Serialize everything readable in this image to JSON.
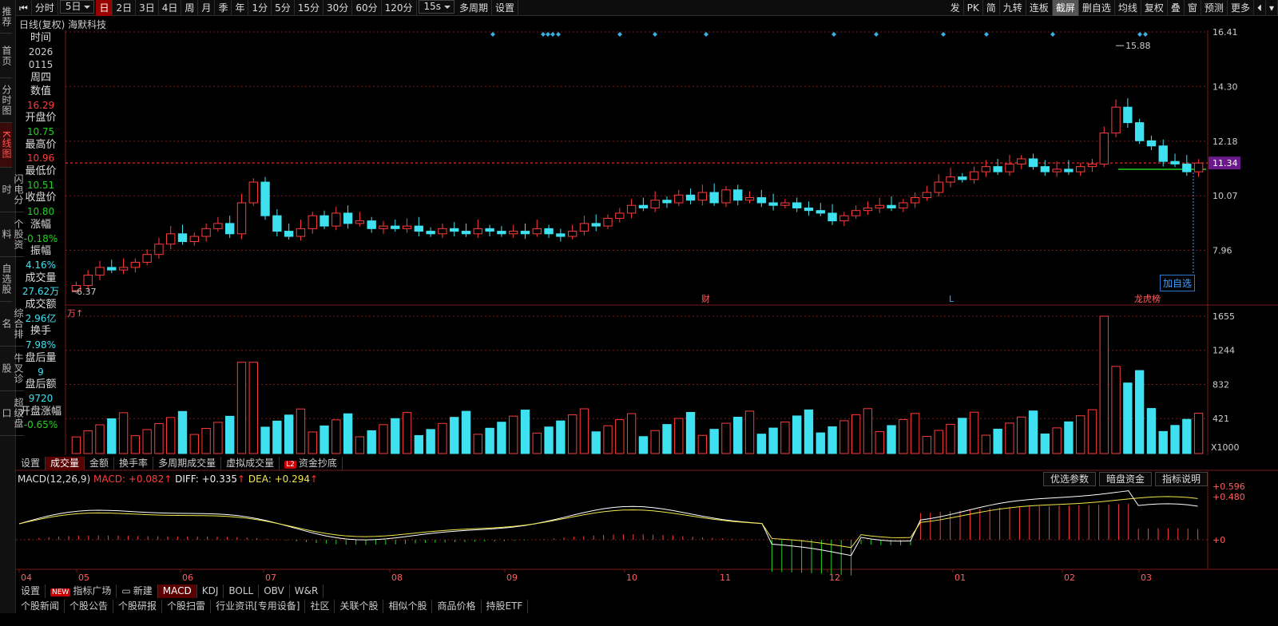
{
  "left_nav": [
    "推荐",
    "首页",
    "分时图",
    "K线图",
    "闪电分时",
    "个股资料",
    "自选股",
    "综合排名",
    "牛叉诊股",
    "超级盘口"
  ],
  "left_nav_active": 3,
  "toolbar": {
    "items": [
      "分时",
      "5日",
      "日",
      "2日",
      "3日",
      "4日",
      "周",
      "月",
      "季",
      "年",
      "1分",
      "5分",
      "15分",
      "30分",
      "60分",
      "120分",
      "15s",
      "多周期",
      "设置"
    ],
    "active": "日",
    "selects": [
      "5日",
      "15s"
    ],
    "right": [
      "发",
      "PK",
      "简",
      "九转",
      "连板",
      "截屏",
      "删自选",
      "均线",
      "复权",
      "叠",
      "窗",
      "预测",
      "更多"
    ]
  },
  "chart_title": "日线(复权)  海默科技",
  "info_panel": [
    {
      "label": "时间",
      "values": [
        "2026",
        "0115"
      ]
    },
    {
      "label": "周四",
      "values": []
    },
    {
      "label": "数值",
      "values": [
        "16.29"
      ],
      "color": "red"
    },
    {
      "label": "开盘价",
      "values": [
        "10.75"
      ],
      "color": "grn"
    },
    {
      "label": "最高价",
      "values": [
        "10.96"
      ],
      "color": "red"
    },
    {
      "label": "最低价",
      "values": [
        "10.51"
      ],
      "color": "grn"
    },
    {
      "label": "收盘价",
      "values": [
        "10.80"
      ],
      "color": "grn"
    },
    {
      "label": "涨幅",
      "values": [
        "-0.18%"
      ],
      "color": "grn"
    },
    {
      "label": "振幅",
      "values": [
        "4.16%"
      ],
      "color": "cyan"
    },
    {
      "label": "成交量",
      "values": [
        "27.62万"
      ],
      "color": "cyan"
    },
    {
      "label": "成交额",
      "values": [
        "2.96亿"
      ],
      "color": "cyan"
    },
    {
      "label": "换手",
      "values": [
        "7.98%"
      ],
      "color": "cyan"
    },
    {
      "label": "盘后量",
      "values": [
        "9"
      ],
      "color": "cyan"
    },
    {
      "label": "盘后额",
      "values": [
        "9720"
      ],
      "color": "cyan"
    },
    {
      "label": "开盘涨幅",
      "values": [
        "-0.65%"
      ],
      "color": "grn"
    }
  ],
  "price_axis": [
    "16.41",
    "14.30",
    "12.18",
    "10.07",
    "7.96"
  ],
  "current_price": "11.34",
  "high_marker": "15.88",
  "low_marker": "6.37",
  "events": [
    "财",
    "L",
    "龙虎榜"
  ],
  "add_favorite": "加自选",
  "volume_unit": "万",
  "volume_axis": [
    "1655",
    "1244",
    "832",
    "421"
  ],
  "volume_scale": "X1000",
  "volume_tabs": [
    "设置",
    "成交量",
    "金额",
    "换手率",
    "多周期成交量",
    "虚拟成交量",
    "资金抄底"
  ],
  "volume_tab_active": "成交量",
  "macd": {
    "title": "MACD(12,26,9)",
    "macd_label": "MACD: +0.082",
    "diff_label": "DIFF: +0.335",
    "dea_label": "DEA: +0.294",
    "axis": [
      "+0.596",
      "+0.480",
      "+0"
    ],
    "buttons": [
      "优选参数",
      "暗盘资金",
      "指标说明"
    ]
  },
  "month_axis": [
    "04",
    "05",
    "06",
    "07",
    "08",
    "09",
    "10",
    "11",
    "12",
    "01",
    "02",
    "03"
  ],
  "indicator_tabs": [
    "设置",
    "指标广场",
    "新建",
    "MACD",
    "KDJ",
    "BOLL",
    "OBV",
    "W&R"
  ],
  "indicator_active": "MACD",
  "bottom_tabs": [
    "个股新闻",
    "个股公告",
    "个股研报",
    "个股扫雷",
    "行业资讯[专用设备]",
    "社区",
    "关联个股",
    "相似个股",
    "商品价格",
    "持股ETF"
  ],
  "colors": {
    "up": "#ff3b3b",
    "down": "#3fe1f0",
    "diff": "#ffffff",
    "dea": "#f2e64b",
    "grid": "#7a1a1a"
  },
  "chart_data": {
    "type": "candlestick",
    "ylim": [
      6.37,
      16.41
    ],
    "series_close": [
      6.6,
      7.0,
      7.3,
      7.2,
      7.3,
      7.5,
      7.8,
      8.2,
      8.6,
      8.3,
      8.5,
      8.8,
      9.0,
      8.6,
      9.8,
      10.6,
      9.3,
      8.7,
      8.5,
      8.8,
      9.3,
      8.9,
      9.4,
      9.0,
      9.1,
      8.8,
      8.9,
      8.8,
      8.9,
      8.7,
      8.6,
      8.8,
      8.7,
      8.6,
      8.8,
      8.7,
      8.6,
      8.7,
      8.6,
      8.8,
      8.6,
      8.5,
      8.7,
      9.0,
      8.9,
      9.2,
      9.4,
      9.7,
      9.6,
      9.9,
      9.8,
      10.1,
      9.9,
      10.2,
      9.8,
      10.3,
      9.9,
      10.0,
      9.8,
      9.7,
      9.8,
      9.6,
      9.5,
      9.4,
      9.1,
      9.3,
      9.5,
      9.6,
      9.7,
      9.6,
      9.8,
      10.0,
      10.2,
      10.6,
      10.8,
      10.7,
      11.0,
      11.2,
      11.0,
      11.3,
      11.5,
      11.2,
      11.0,
      11.1,
      11.0,
      11.2,
      11.3,
      12.5,
      13.5,
      12.9,
      12.2,
      12.0,
      11.4,
      11.3,
      11.0,
      11.34
    ],
    "volume_max": 1655
  }
}
